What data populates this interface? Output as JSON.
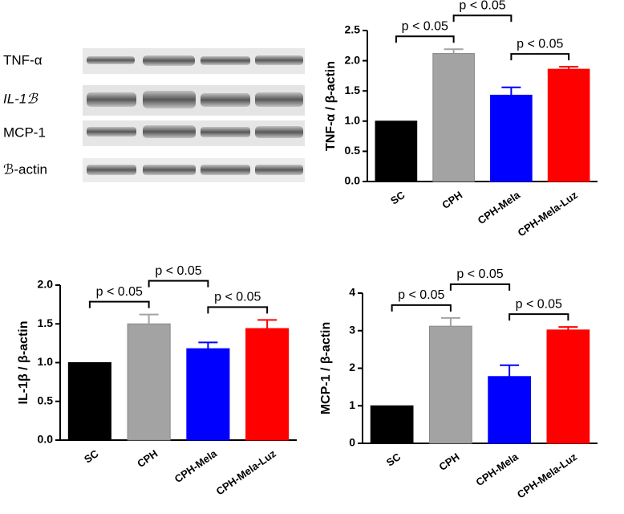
{
  "blot": {
    "labels": [
      "TNF-α",
      "IL-1ℬ",
      "MCP-1",
      "ℬ-actin"
    ]
  },
  "chart_data": [
    {
      "type": "bar",
      "ylabel": "TNF-α / β-actin",
      "categories": [
        "SC",
        "CPH",
        "CPH-Mela",
        "CPH-Mela-Luz"
      ],
      "values": [
        1.0,
        2.12,
        1.43,
        1.86
      ],
      "errors": [
        0,
        0.07,
        0.13,
        0.04
      ],
      "colors": [
        "#000000",
        "#a3a3a3",
        "#0000ff",
        "#ff0000"
      ],
      "ylim": [
        0,
        2.5
      ],
      "yticks": [
        {
          "value": 0,
          "label": "0.0"
        },
        {
          "value": 0.5,
          "label": "0.5"
        },
        {
          "value": 1,
          "label": "1.0"
        },
        {
          "value": 1.5,
          "label": "1.5"
        },
        {
          "value": 2,
          "label": "2.0"
        },
        {
          "value": 2.5,
          "label": "2.5"
        }
      ],
      "annotations": [
        {
          "text": "p < 0.05",
          "between": [
            "SC",
            "CPH"
          ]
        },
        {
          "text": "p < 0.05",
          "between": [
            "CPH",
            "CPH-Mela"
          ]
        },
        {
          "text": "p < 0.05",
          "between": [
            "CPH-Mela",
            "CPH-Mela-Luz"
          ]
        }
      ]
    },
    {
      "type": "bar",
      "ylabel": "IL-1β / β-actin",
      "categories": [
        "SC",
        "CPH",
        "CPH-Mela",
        "CPH-Mela-Luz"
      ],
      "values": [
        1.0,
        1.5,
        1.18,
        1.44
      ],
      "errors": [
        0,
        0.12,
        0.08,
        0.11
      ],
      "colors": [
        "#000000",
        "#a3a3a3",
        "#0000ff",
        "#ff0000"
      ],
      "ylim": [
        0,
        2.0
      ],
      "yticks": [
        {
          "value": 0,
          "label": "0.0"
        },
        {
          "value": 0.5,
          "label": "0.5"
        },
        {
          "value": 1,
          "label": "1.0"
        },
        {
          "value": 1.5,
          "label": "1.5"
        },
        {
          "value": 2,
          "label": "2.0"
        }
      ],
      "annotations": [
        {
          "text": "p < 0.05",
          "between": [
            "SC",
            "CPH"
          ]
        },
        {
          "text": "p < 0.05",
          "between": [
            "CPH",
            "CPH-Mela"
          ]
        },
        {
          "text": "p < 0.05",
          "between": [
            "CPH-Mela",
            "CPH-Mela-Luz"
          ]
        }
      ]
    },
    {
      "type": "bar",
      "ylabel": "MCP-1 / β-actin",
      "categories": [
        "SC",
        "CPH",
        "CPH-Mela",
        "CPH-Mela-Luz"
      ],
      "values": [
        1.0,
        3.12,
        1.78,
        3.02
      ],
      "errors": [
        0,
        0.22,
        0.3,
        0.08
      ],
      "colors": [
        "#000000",
        "#a3a3a3",
        "#0000ff",
        "#ff0000"
      ],
      "ylim": [
        0,
        4
      ],
      "yticks": [
        0,
        1,
        2,
        3,
        4
      ],
      "annotations": [
        {
          "text": "p < 0.05",
          "between": [
            "SC",
            "CPH"
          ]
        },
        {
          "text": "p < 0.05",
          "between": [
            "CPH",
            "CPH-Mela"
          ]
        },
        {
          "text": "p < 0.05",
          "between": [
            "CPH-Mela",
            "CPH-Mela-Luz"
          ]
        }
      ]
    }
  ]
}
